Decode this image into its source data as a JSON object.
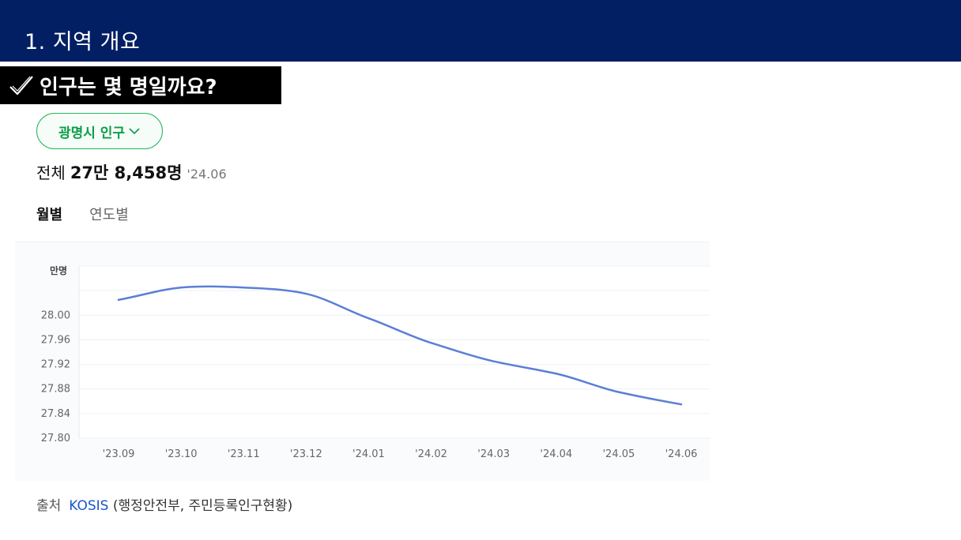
{
  "header": {
    "section_title": "1. 지역 개요"
  },
  "question": {
    "text": "인구는 몇 명일까요?"
  },
  "selector": {
    "label": "광명시 인구"
  },
  "summary": {
    "label": "전체",
    "value": "27만 8,458명",
    "date": "'24.06"
  },
  "tabs": [
    {
      "label": "월별",
      "active": true
    },
    {
      "label": "연도별",
      "active": false
    }
  ],
  "chart_data": {
    "type": "line",
    "unit_label": "만명",
    "categories": [
      "'23.09",
      "'23.10",
      "'23.11",
      "'23.12",
      "'24.01",
      "'24.02",
      "'24.03",
      "'24.04",
      "'24.05",
      "'24.06"
    ],
    "values": [
      28.025,
      28.045,
      28.045,
      28.035,
      27.995,
      27.955,
      27.925,
      27.905,
      27.875,
      27.855
    ],
    "yticks": [
      "28.00",
      "27.96",
      "27.92",
      "27.88",
      "27.84",
      "27.80"
    ],
    "ylim": [
      27.8,
      28.08
    ],
    "grid": true,
    "line_color": "#5b7fd6"
  },
  "source": {
    "label": "출처",
    "link_text": "KOSIS",
    "detail": " (행정안전부, 주민등록인구현황)"
  }
}
